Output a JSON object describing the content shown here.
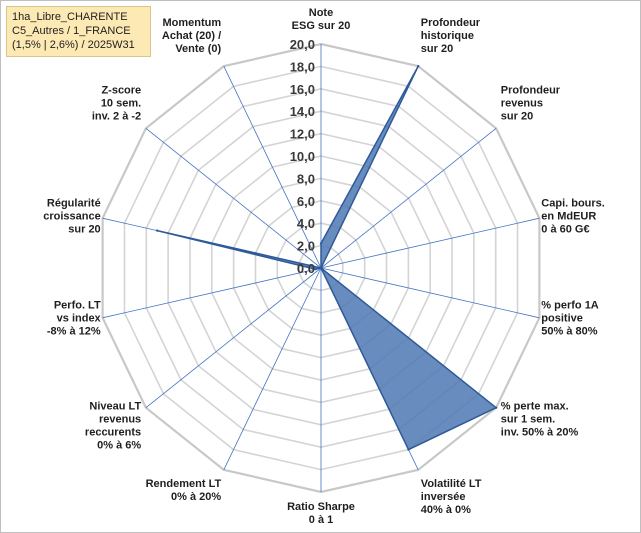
{
  "title": {
    "lines": [
      "1ha_Libre_CHARENTE",
      "C5_Autres / 1_FRANCE",
      "(1,5% | 2,6%) / 2025W31"
    ]
  },
  "chart_data": {
    "type": "radar",
    "scale": {
      "min": 0,
      "max": 20,
      "step": 2
    },
    "tick_labels": [
      "0,0",
      "2,0",
      "4,0",
      "6,0",
      "8,0",
      "10,0",
      "12,0",
      "14,0",
      "16,0",
      "18,0",
      "20,0"
    ],
    "axes": [
      {
        "label": [
          "Note",
          "ESG sur 20"
        ],
        "value": 2.2
      },
      {
        "label": [
          "Profondeur",
          "historique",
          "sur 20"
        ],
        "value": 20
      },
      {
        "label": [
          "Profondeur",
          "revenus",
          "sur 20"
        ],
        "value": 0
      },
      {
        "label": [
          "Capi. bours.",
          "en MdEUR",
          "0 à 60 G€"
        ],
        "value": 0
      },
      {
        "label": [
          "% perfo 1A",
          "positive",
          "50% à 80%"
        ],
        "value": 0
      },
      {
        "label": [
          "% perte max.",
          "sur 1 sem.",
          "inv. 50% à 20%"
        ],
        "value": 20
      },
      {
        "label": [
          "Volatilité LT",
          "inversée",
          "40% à 0%"
        ],
        "value": 18
      },
      {
        "label": [
          "Ratio Sharpe",
          "0 à 1"
        ],
        "value": 0
      },
      {
        "label": [
          "Rendement LT",
          "0% à 20%"
        ],
        "value": 0
      },
      {
        "label": [
          "Niveau LT",
          "revenus",
          "reccurents",
          "0% à 6%"
        ],
        "value": 0
      },
      {
        "label": [
          "Perfo. LT",
          "vs index",
          "-8% à 12%"
        ],
        "value": 0.5
      },
      {
        "label": [
          "Régularité",
          "croissance",
          "sur 20"
        ],
        "value": 15
      },
      {
        "label": [
          "Z-score",
          "10 sem.",
          "inv. 2 à -2"
        ],
        "value": 0
      },
      {
        "label": [
          "Momentum",
          "Achat (20) /",
          "Vente (0)"
        ],
        "value": 0
      }
    ],
    "colors": {
      "fill": "#4f78b3",
      "stroke": "#2f5a9a",
      "grid": "#d4d4d4",
      "spoke": "#4472c4"
    }
  }
}
